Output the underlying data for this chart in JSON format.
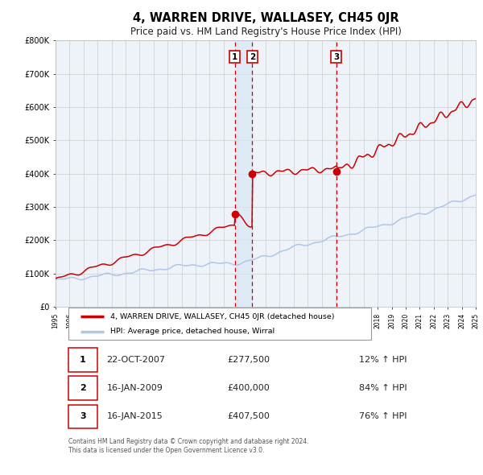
{
  "title": "4, WARREN DRIVE, WALLASEY, CH45 0JR",
  "subtitle": "Price paid vs. HM Land Registry's House Price Index (HPI)",
  "title_fontsize": 10.5,
  "subtitle_fontsize": 8.5,
  "x_start_year": 1995,
  "x_end_year": 2025,
  "y_min": 0,
  "y_max": 800000,
  "y_ticks": [
    0,
    100000,
    200000,
    300000,
    400000,
    500000,
    600000,
    700000,
    800000
  ],
  "y_tick_labels": [
    "£0",
    "£100K",
    "£200K",
    "£300K",
    "£400K",
    "£500K",
    "£600K",
    "£700K",
    "£800K"
  ],
  "hpi_color": "#aec6e8",
  "price_color": "#cc0000",
  "grid_color": "#cccccc",
  "bg_color": "#eef3fa",
  "shade_color": "#d8e8f5",
  "sale_points": [
    {
      "year": 2007.8,
      "price": 277500,
      "label": "1"
    },
    {
      "year": 2009.04,
      "price": 400000,
      "label": "2"
    },
    {
      "year": 2015.04,
      "price": 407500,
      "label": "3"
    }
  ],
  "vline_color": "#cc0000",
  "legend_prop_label": "4, WARREN DRIVE, WALLASEY, CH45 0JR (detached house)",
  "legend_hpi_label": "HPI: Average price, detached house, Wirral",
  "table_rows": [
    {
      "num": "1",
      "date": "22-OCT-2007",
      "price": "£277,500",
      "change": "12% ↑ HPI"
    },
    {
      "num": "2",
      "date": "16-JAN-2009",
      "price": "£400,000",
      "change": "84% ↑ HPI"
    },
    {
      "num": "3",
      "date": "16-JAN-2015",
      "price": "£407,500",
      "change": "76% ↑ HPI"
    }
  ],
  "footnote": "Contains HM Land Registry data © Crown copyright and database right 2024.\nThis data is licensed under the Open Government Licence v3.0.",
  "label_box_color": "#cc0000"
}
